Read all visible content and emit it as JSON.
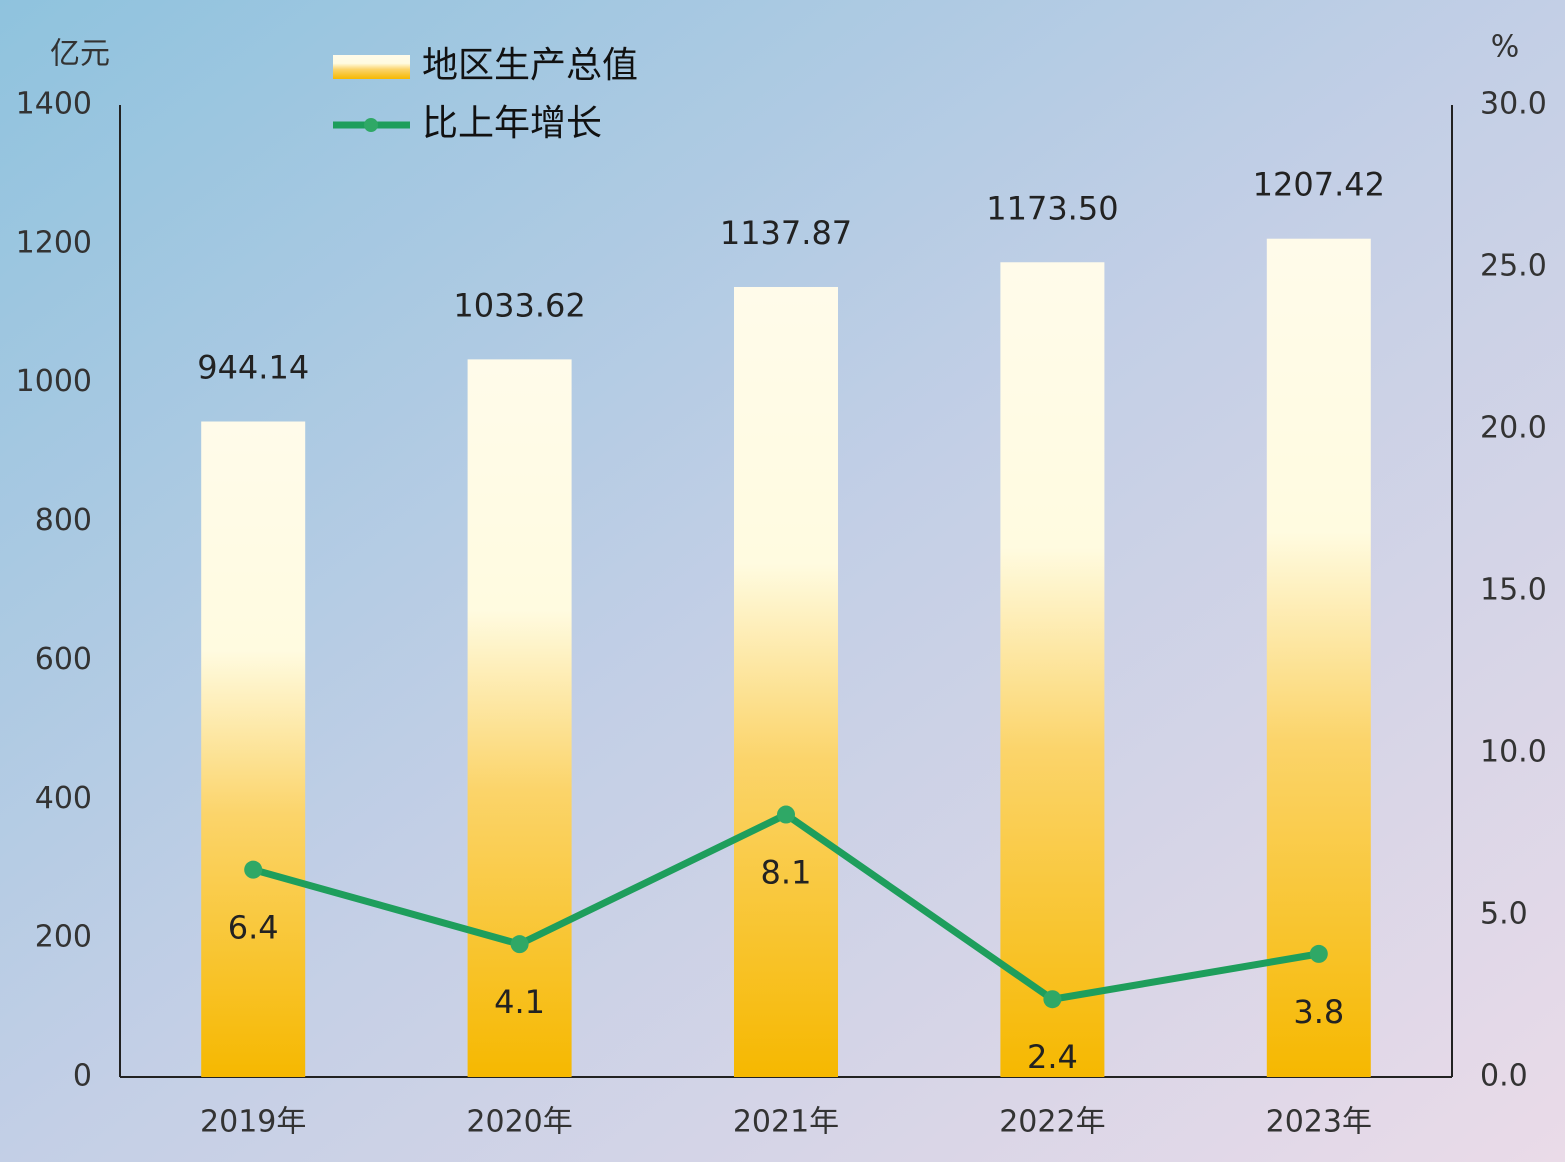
{
  "chart_data": {
    "type": "bar",
    "y_label": "亿元",
    "y2_label": "%",
    "categories": [
      "2019年",
      "2020年",
      "2021年",
      "2022年",
      "2023年"
    ],
    "series": [
      {
        "name": "地区生产总值",
        "type": "bar",
        "color": "#f5b800",
        "values": [
          944.14,
          1033.62,
          1137.87,
          1173.5,
          1207.42
        ],
        "value_labels": [
          "944.14",
          "1033.62",
          "1137.87",
          "1173.50",
          "1207.42"
        ]
      },
      {
        "name": "比上年增长",
        "type": "line",
        "axis": "y2",
        "color": "#1e9e5c",
        "values": [
          6.4,
          4.1,
          8.1,
          2.4,
          3.8
        ]
      }
    ],
    "ylim": [
      0,
      1400
    ],
    "yticks": [
      0,
      200,
      400,
      600,
      800,
      1000,
      1200,
      1400
    ],
    "y2lim": [
      0,
      30
    ],
    "y2ticks": [
      {
        "value": 0,
        "label": "0.0"
      },
      {
        "value": 5,
        "label": "5.0"
      },
      {
        "value": 10,
        "label": "10.0"
      },
      {
        "value": 15,
        "label": "15.0"
      },
      {
        "value": 20,
        "label": "20.0"
      },
      {
        "value": 25,
        "label": "25.0"
      },
      {
        "value": 30,
        "label": "30.0"
      }
    ],
    "grid": false,
    "legend": "top-left"
  }
}
